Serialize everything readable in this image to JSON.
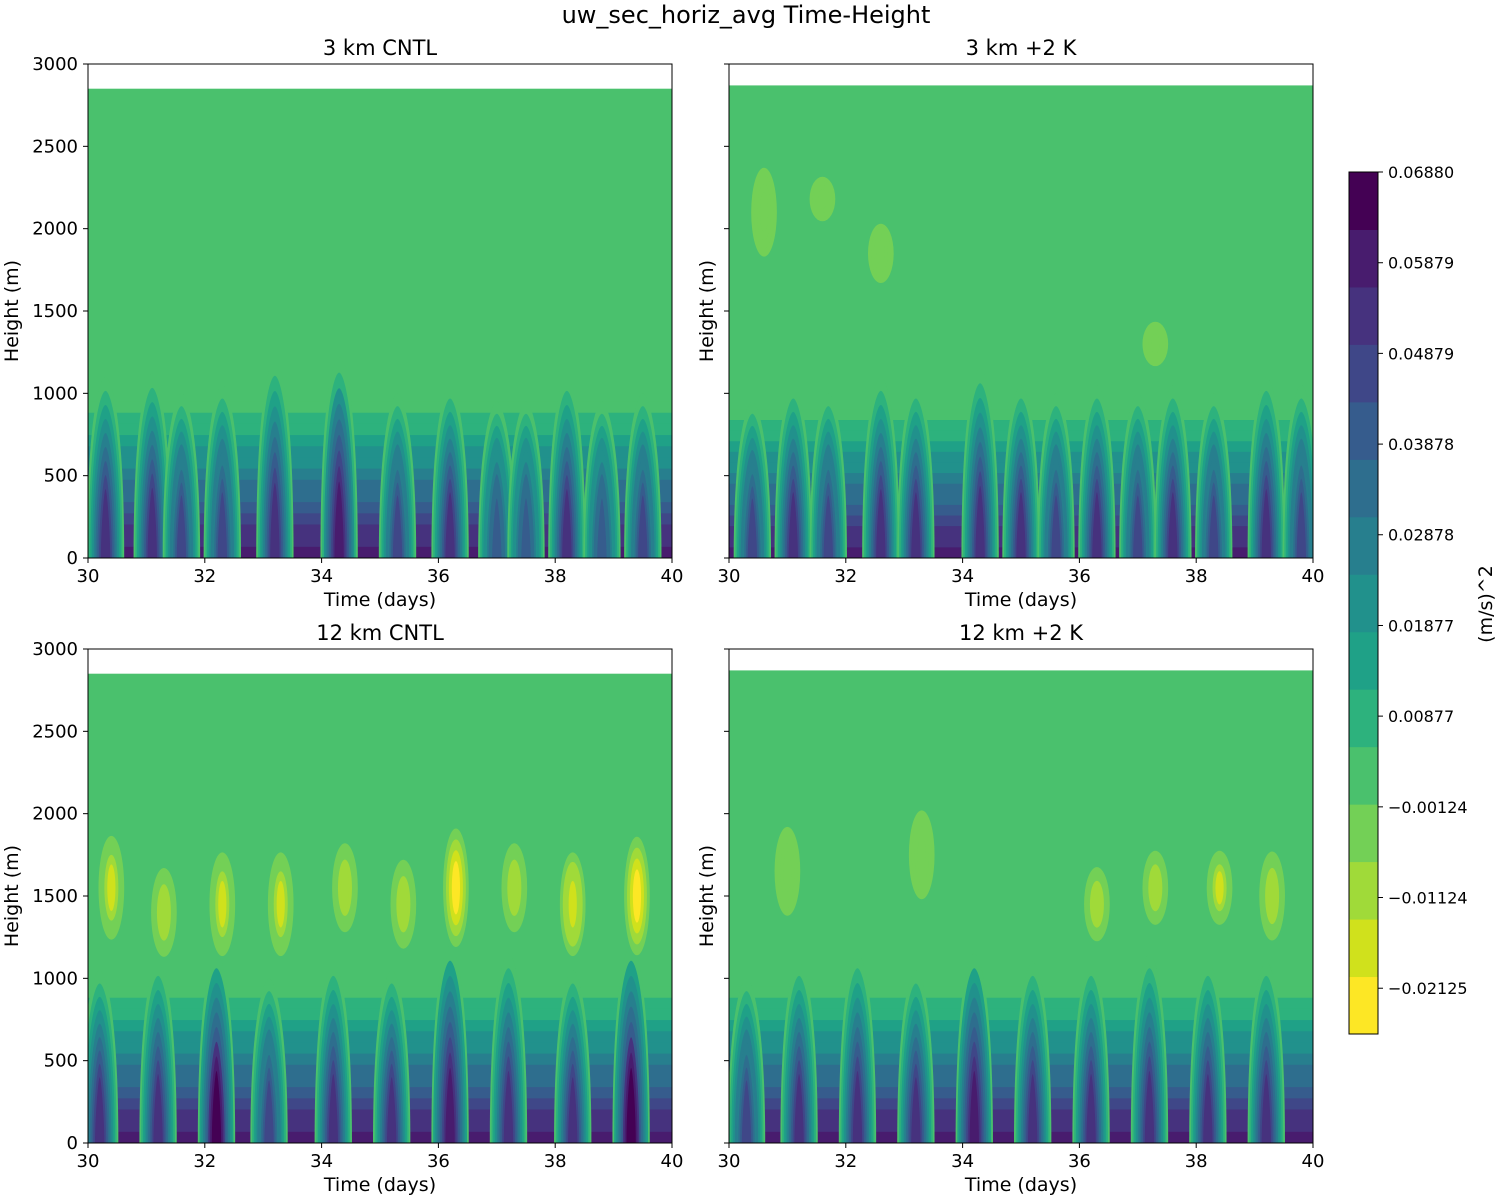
{
  "figure": {
    "title": "uw_sec_horiz_avg Time-Height"
  },
  "colors": {
    "background_ok": "#48c16e",
    "levels": [
      "#fde725",
      "#d0e11c",
      "#a0da39",
      "#73d056",
      "#4ac16d",
      "#2db27d",
      "#1fa187",
      "#21918c",
      "#277f8e",
      "#2e6e8e",
      "#365c8d",
      "#3f4788",
      "#46327e",
      "#481c6e",
      "#440154"
    ]
  },
  "chart_data": [
    {
      "type": "heatmap",
      "title": "3 km CNTL",
      "xlabel": "Time (days)",
      "ylabel": "Height (m)",
      "xlim": [
        30,
        40
      ],
      "ylim": [
        0,
        3000
      ],
      "xticks": [
        "30",
        "32",
        "34",
        "36",
        "38",
        "40"
      ],
      "yticks": [
        "0",
        "500",
        "1000",
        "1500",
        "2000",
        "2500",
        "3000"
      ],
      "data_top": 2850,
      "boundary_layer_depth_m": 1000,
      "surface_peak_value": 0.065,
      "plumes": [
        {
          "t": 30.3,
          "h": 1100,
          "v": 0.05
        },
        {
          "t": 31.1,
          "h": 1120,
          "v": 0.055
        },
        {
          "t": 31.6,
          "h": 1000,
          "v": 0.045
        },
        {
          "t": 32.3,
          "h": 1050,
          "v": 0.045
        },
        {
          "t": 33.2,
          "h": 1200,
          "v": 0.055
        },
        {
          "t": 34.3,
          "h": 1220,
          "v": 0.058
        },
        {
          "t": 35.3,
          "h": 1000,
          "v": 0.045
        },
        {
          "t": 36.2,
          "h": 1050,
          "v": 0.05
        },
        {
          "t": 37.0,
          "h": 950,
          "v": 0.04
        },
        {
          "t": 37.5,
          "h": 950,
          "v": 0.04
        },
        {
          "t": 38.2,
          "h": 1100,
          "v": 0.055
        },
        {
          "t": 38.8,
          "h": 950,
          "v": 0.04
        },
        {
          "t": 39.5,
          "h": 1000,
          "v": 0.045
        }
      ],
      "negative_patches": []
    },
    {
      "type": "heatmap",
      "title": "3 km +2 K",
      "xlabel": "Time (days)",
      "ylabel": "Height (m)",
      "xlim": [
        30,
        40
      ],
      "ylim": [
        0,
        3000
      ],
      "xticks": [
        "30",
        "32",
        "34",
        "36",
        "38",
        "40"
      ],
      "yticks": [],
      "data_top": 2870,
      "boundary_layer_depth_m": 950,
      "surface_peak_value": 0.065,
      "plumes": [
        {
          "t": 30.4,
          "h": 950,
          "v": 0.045
        },
        {
          "t": 31.1,
          "h": 1050,
          "v": 0.05
        },
        {
          "t": 31.7,
          "h": 1000,
          "v": 0.045
        },
        {
          "t": 32.6,
          "h": 1100,
          "v": 0.055
        },
        {
          "t": 33.2,
          "h": 1050,
          "v": 0.05
        },
        {
          "t": 34.3,
          "h": 1150,
          "v": 0.055
        },
        {
          "t": 35.0,
          "h": 1050,
          "v": 0.05
        },
        {
          "t": 35.6,
          "h": 1000,
          "v": 0.045
        },
        {
          "t": 36.3,
          "h": 1050,
          "v": 0.05
        },
        {
          "t": 37.0,
          "h": 1000,
          "v": 0.045
        },
        {
          "t": 37.6,
          "h": 1050,
          "v": 0.05
        },
        {
          "t": 38.3,
          "h": 1000,
          "v": 0.045
        },
        {
          "t": 39.2,
          "h": 1100,
          "v": 0.05
        },
        {
          "t": 39.8,
          "h": 1050,
          "v": 0.045
        }
      ],
      "negative_patches": [
        {
          "t": 30.6,
          "h": 2100,
          "dh": 300,
          "v": -0.004
        },
        {
          "t": 31.6,
          "h": 2180,
          "dh": 150,
          "v": -0.004
        },
        {
          "t": 32.6,
          "h": 1850,
          "dh": 200,
          "v": -0.004
        },
        {
          "t": 37.3,
          "h": 1300,
          "dh": 150,
          "v": -0.004
        }
      ]
    },
    {
      "type": "heatmap",
      "title": "12 km CNTL",
      "xlabel": "Time (days)",
      "ylabel": "Height (m)",
      "xlim": [
        30,
        40
      ],
      "ylim": [
        0,
        3000
      ],
      "xticks": [
        "30",
        "32",
        "34",
        "36",
        "38",
        "40"
      ],
      "yticks": [
        "0",
        "500",
        "1000",
        "1500",
        "2000",
        "2500",
        "3000"
      ],
      "data_top": 2850,
      "boundary_layer_depth_m": 1000,
      "surface_peak_value": 0.065,
      "plumes": [
        {
          "t": 30.2,
          "h": 1050,
          "v": 0.05
        },
        {
          "t": 31.2,
          "h": 1100,
          "v": 0.05
        },
        {
          "t": 32.2,
          "h": 1150,
          "v": 0.065
        },
        {
          "t": 33.1,
          "h": 1000,
          "v": 0.045
        },
        {
          "t": 34.2,
          "h": 1100,
          "v": 0.05
        },
        {
          "t": 35.2,
          "h": 1050,
          "v": 0.05
        },
        {
          "t": 36.2,
          "h": 1200,
          "v": 0.06
        },
        {
          "t": 37.2,
          "h": 1150,
          "v": 0.05
        },
        {
          "t": 38.3,
          "h": 1050,
          "v": 0.05
        },
        {
          "t": 39.3,
          "h": 1200,
          "v": 0.065
        }
      ],
      "negative_patches": [
        {
          "t": 30.4,
          "h": 1550,
          "dh": 350,
          "v": -0.016
        },
        {
          "t": 31.3,
          "h": 1400,
          "dh": 300,
          "v": -0.01
        },
        {
          "t": 32.3,
          "h": 1450,
          "dh": 350,
          "v": -0.016
        },
        {
          "t": 33.3,
          "h": 1450,
          "dh": 350,
          "v": -0.016
        },
        {
          "t": 34.4,
          "h": 1550,
          "dh": 300,
          "v": -0.013
        },
        {
          "t": 35.4,
          "h": 1450,
          "dh": 300,
          "v": -0.01
        },
        {
          "t": 36.3,
          "h": 1550,
          "dh": 400,
          "v": -0.02
        },
        {
          "t": 37.3,
          "h": 1550,
          "dh": 300,
          "v": -0.013
        },
        {
          "t": 38.3,
          "h": 1450,
          "dh": 350,
          "v": -0.018
        },
        {
          "t": 39.4,
          "h": 1500,
          "dh": 400,
          "v": -0.024
        }
      ]
    },
    {
      "type": "heatmap",
      "title": "12 km +2 K",
      "xlabel": "Time (days)",
      "ylabel": "Height (m)",
      "xlim": [
        30,
        40
      ],
      "ylim": [
        0,
        3000
      ],
      "xticks": [
        "30",
        "32",
        "34",
        "36",
        "38",
        "40"
      ],
      "yticks": [],
      "data_top": 2870,
      "boundary_layer_depth_m": 1000,
      "surface_peak_value": 0.065,
      "plumes": [
        {
          "t": 30.3,
          "h": 1000,
          "v": 0.045
        },
        {
          "t": 31.2,
          "h": 1100,
          "v": 0.05
        },
        {
          "t": 32.2,
          "h": 1150,
          "v": 0.055
        },
        {
          "t": 33.2,
          "h": 1050,
          "v": 0.05
        },
        {
          "t": 34.2,
          "h": 1150,
          "v": 0.06
        },
        {
          "t": 35.2,
          "h": 1100,
          "v": 0.05
        },
        {
          "t": 36.2,
          "h": 1100,
          "v": 0.05
        },
        {
          "t": 37.2,
          "h": 1150,
          "v": 0.055
        },
        {
          "t": 38.2,
          "h": 1100,
          "v": 0.05
        },
        {
          "t": 39.2,
          "h": 1100,
          "v": 0.05
        }
      ],
      "negative_patches": [
        {
          "t": 31.0,
          "h": 1650,
          "dh": 300,
          "v": -0.006
        },
        {
          "t": 33.3,
          "h": 1750,
          "dh": 300,
          "v": -0.006
        },
        {
          "t": 36.3,
          "h": 1450,
          "dh": 250,
          "v": -0.012
        },
        {
          "t": 37.3,
          "h": 1550,
          "dh": 250,
          "v": -0.012
        },
        {
          "t": 38.4,
          "h": 1550,
          "dh": 250,
          "v": -0.014
        },
        {
          "t": 39.3,
          "h": 1500,
          "dh": 300,
          "v": -0.013
        }
      ]
    }
  ],
  "colorbar": {
    "label": "(m/s)^2",
    "min": -0.0263,
    "max": 0.0688,
    "ticks": [
      "0.06880",
      "0.05879",
      "0.04879",
      "0.03878",
      "0.02878",
      "0.01877",
      "0.00877",
      "−0.00124",
      "−0.01124",
      "−0.02125"
    ],
    "tick_values": [
      0.0688,
      0.05879,
      0.04879,
      0.03878,
      0.02878,
      0.01877,
      0.00877,
      -0.00124,
      -0.01124,
      -0.02125
    ]
  }
}
